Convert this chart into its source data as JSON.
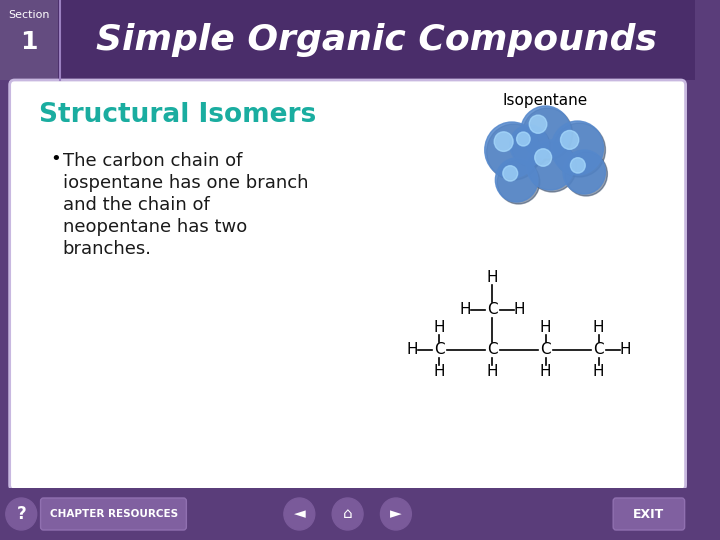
{
  "title": "Simple Organic Compounds",
  "section_label": "Section",
  "section_number": "1",
  "heading": "Structural Isomers",
  "bullet_text": "The carbon chain of\niospentane has one branch\nand the chain of\nneopentane has two\nbranches.",
  "isopentane_label": "Isopentane",
  "bg_color": "#5a3d7a",
  "header_bg": "#5a3d7a",
  "header_text_color": "#ffffff",
  "card_bg": "#f0eef8",
  "heading_color": "#1aada0",
  "bullet_color": "#1a1a1a",
  "footer_bg": "#6b4d8a",
  "footer_button_color": "#8060a0",
  "section_divider_color": "#9b80c0"
}
